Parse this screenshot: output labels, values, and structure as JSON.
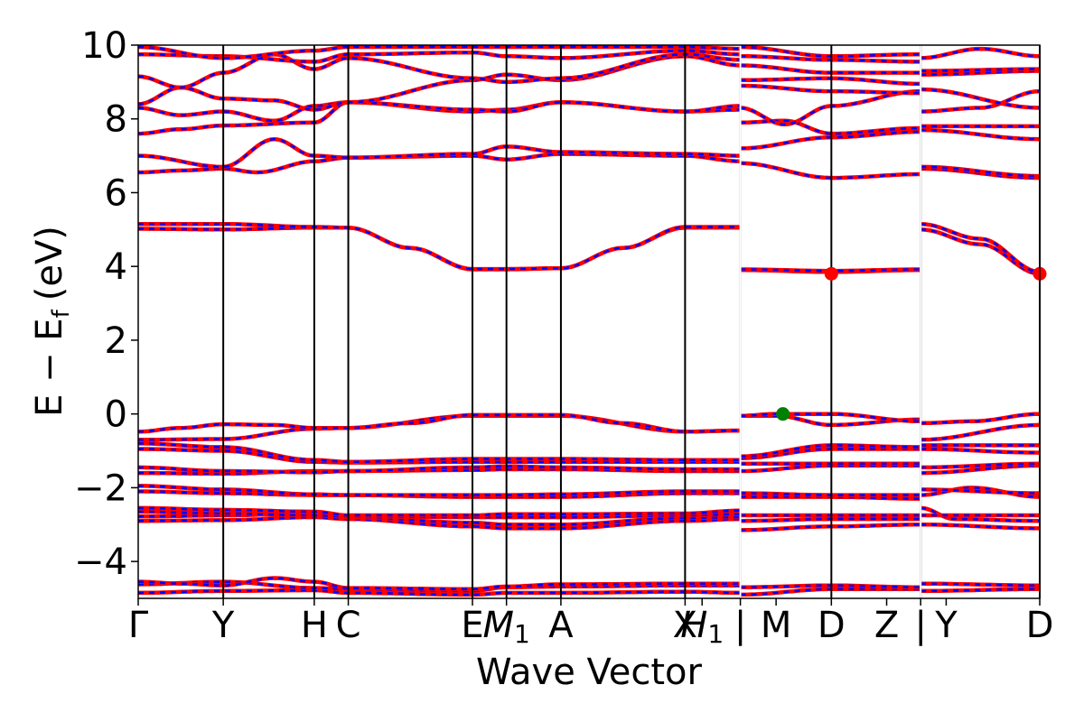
{
  "chart_data": {
    "type": "line",
    "title": "",
    "xlabel": "Wave Vector",
    "ylabel": "E − E_f (eV)",
    "ylabel_parts": {
      "main": "E − E",
      "sub": "f",
      "unit": "(eV)"
    },
    "ylim": [
      -5,
      10
    ],
    "yticks": [
      -4,
      -2,
      0,
      2,
      4,
      6,
      8,
      10
    ],
    "ytick_labels": [
      "−4",
      "−2",
      "0",
      "2",
      "4",
      "6",
      "8",
      "10"
    ],
    "x_range": [
      0,
      10.6
    ],
    "kpoint_ticks": [
      {
        "x": 0.0,
        "label": "Γ"
      },
      {
        "x": 1.0,
        "label": "Y"
      },
      {
        "x": 2.07,
        "label": "H"
      },
      {
        "x": 2.47,
        "label": "C"
      },
      {
        "x": 3.93,
        "label": "E"
      },
      {
        "x": 4.33,
        "label": "M",
        "sub": "1"
      },
      {
        "x": 4.97,
        "label": "A"
      },
      {
        "x": 6.43,
        "label": "X"
      },
      {
        "x": 6.63,
        "label": "H",
        "sub": "1"
      },
      {
        "x": 7.08,
        "label": "|"
      },
      {
        "x": 7.5,
        "label": "M"
      },
      {
        "x": 8.15,
        "label": "D"
      },
      {
        "x": 8.8,
        "label": "Z"
      },
      {
        "x": 9.2,
        "label": "|"
      },
      {
        "x": 9.5,
        "label": "Y"
      },
      {
        "x": 10.6,
        "label": "D"
      }
    ],
    "vlines": [
      1.0,
      2.07,
      2.47,
      3.93,
      4.33,
      4.97,
      6.43,
      7.08,
      8.15,
      9.2,
      10.6
    ],
    "segment_breaks": [
      7.08,
      9.2
    ],
    "series_colors": [
      "#ff0000",
      "#0000ff"
    ],
    "marker_colors": {
      "cbm": "#ff0000",
      "vbm": "#008000"
    },
    "bands_segment1": [
      {
        "x": [
          0,
          1.0,
          2.07,
          2.47,
          3.93,
          4.33,
          4.97,
          6.43,
          7.08
        ],
        "y": [
          -4.85,
          -4.8,
          -4.78,
          -4.85,
          -4.9,
          -4.85,
          -4.85,
          -4.82,
          -4.85
        ]
      },
      {
        "x": [
          0,
          1.0,
          2.07,
          2.47,
          3.93,
          4.33,
          4.97,
          6.43,
          7.08
        ],
        "y": [
          -4.62,
          -4.55,
          -4.72,
          -4.75,
          -4.8,
          -4.7,
          -4.68,
          -4.65,
          -4.65
        ]
      },
      {
        "x": [
          0,
          0.5,
          1.0,
          1.6,
          2.07,
          2.47,
          3.93,
          4.33,
          4.97,
          6.43,
          7.08
        ],
        "y": [
          -4.55,
          -4.6,
          -4.65,
          -4.45,
          -4.55,
          -4.72,
          -4.75,
          -4.68,
          -4.62,
          -4.6,
          -4.6
        ]
      },
      {
        "x": [
          0,
          1.0,
          2.07,
          2.47,
          3.93,
          4.33,
          4.97,
          6.43,
          7.08
        ],
        "y": [
          -2.9,
          -2.88,
          -2.8,
          -2.85,
          -3.05,
          -3.1,
          -3.1,
          -2.9,
          -2.85
        ]
      },
      {
        "x": [
          0,
          1.0,
          2.07,
          2.47,
          3.93,
          4.33,
          4.97,
          6.43,
          7.08
        ],
        "y": [
          -2.78,
          -2.75,
          -2.7,
          -2.8,
          -2.95,
          -3.0,
          -3.0,
          -2.82,
          -2.8
        ]
      },
      {
        "x": [
          0,
          1.0,
          2.07,
          2.47,
          3.93,
          4.33,
          4.97,
          6.43,
          7.08
        ],
        "y": [
          -2.65,
          -2.7,
          -2.75,
          -2.78,
          -2.8,
          -2.8,
          -2.8,
          -2.75,
          -2.72
        ]
      },
      {
        "x": [
          0,
          1.0,
          2.07,
          2.47,
          3.93,
          4.33,
          4.97,
          6.43,
          7.08
        ],
        "y": [
          -2.55,
          -2.6,
          -2.65,
          -2.75,
          -2.75,
          -2.72,
          -2.72,
          -2.7,
          -2.62
        ]
      },
      {
        "x": [
          0,
          1.0,
          2.07,
          2.47,
          3.93,
          4.33,
          4.97,
          6.43,
          7.08
        ],
        "y": [
          -2.1,
          -2.15,
          -2.2,
          -2.2,
          -2.25,
          -2.25,
          -2.25,
          -2.15,
          -2.15
        ]
      },
      {
        "x": [
          0,
          1.0,
          2.07,
          2.47,
          3.93,
          4.33,
          4.97,
          6.43,
          7.08
        ],
        "y": [
          -1.95,
          -2.05,
          -2.18,
          -2.2,
          -2.2,
          -2.2,
          -2.18,
          -2.1,
          -2.1
        ]
      },
      {
        "x": [
          0,
          1.0,
          2.07,
          2.47,
          3.93,
          4.33,
          4.97,
          6.43,
          7.08
        ],
        "y": [
          -1.6,
          -1.62,
          -1.55,
          -1.55,
          -1.52,
          -1.5,
          -1.5,
          -1.55,
          -1.55
        ]
      },
      {
        "x": [
          0,
          1.0,
          2.07,
          2.47,
          3.93,
          4.33,
          4.97,
          6.43,
          7.08
        ],
        "y": [
          -1.45,
          -1.55,
          -1.58,
          -1.55,
          -1.45,
          -1.42,
          -1.45,
          -1.5,
          -1.5
        ]
      },
      {
        "x": [
          0,
          1.0,
          2.07,
          2.47,
          3.93,
          4.33,
          4.97,
          6.43,
          7.08
        ],
        "y": [
          -0.95,
          -1.0,
          -1.3,
          -1.32,
          -1.3,
          -1.3,
          -1.3,
          -1.3,
          -1.3
        ]
      },
      {
        "x": [
          0,
          1.0,
          2.07,
          2.47,
          3.93,
          4.33,
          4.97,
          6.43,
          7.08
        ],
        "y": [
          -0.8,
          -0.9,
          -1.25,
          -1.3,
          -1.22,
          -1.22,
          -1.22,
          -1.25,
          -1.25
        ]
      },
      {
        "x": [
          0,
          1.0,
          2.07,
          2.47,
          3.93,
          4.33,
          4.97,
          6.43,
          7.08
        ],
        "y": [
          -0.7,
          -0.68,
          -0.4,
          -0.38,
          -0.05,
          -0.05,
          -0.05,
          -0.48,
          -0.45
        ]
      },
      {
        "x": [
          0,
          0.5,
          1.0,
          1.6,
          2.07,
          2.47,
          3.2,
          3.93,
          4.33,
          4.97,
          5.7,
          6.43,
          7.08
        ],
        "y": [
          -0.48,
          -0.38,
          -0.28,
          -0.3,
          -0.38,
          -0.38,
          -0.25,
          -0.03,
          -0.03,
          -0.03,
          -0.25,
          -0.48,
          -0.45
        ]
      },
      {
        "x": [
          0,
          1.0,
          2.07,
          2.47,
          3.2,
          3.93,
          4.33,
          4.97,
          5.7,
          6.43,
          7.08
        ],
        "y": [
          5.02,
          5.0,
          5.05,
          5.05,
          4.5,
          3.92,
          3.92,
          3.95,
          4.5,
          5.05,
          5.05
        ]
      },
      {
        "x": [
          0,
          1.0,
          2.07,
          2.47,
          3.2,
          3.93,
          4.33,
          4.97,
          5.7,
          6.43,
          7.08
        ],
        "y": [
          5.15,
          5.15,
          5.07,
          5.05,
          4.5,
          3.93,
          3.93,
          3.95,
          4.5,
          5.07,
          5.07
        ]
      },
      {
        "x": [
          0,
          0.5,
          1.0,
          1.4,
          2.07,
          2.47,
          3.93,
          4.33,
          4.97,
          6.43,
          7.08
        ],
        "y": [
          6.55,
          6.6,
          6.65,
          6.55,
          6.85,
          6.95,
          7.0,
          6.9,
          7.05,
          7.0,
          6.85
        ]
      },
      {
        "x": [
          0,
          1.0,
          1.6,
          2.07,
          2.47,
          3.93,
          4.33,
          4.97,
          6.43,
          7.08
        ],
        "y": [
          7.0,
          6.7,
          7.45,
          7.0,
          6.95,
          7.05,
          7.25,
          7.1,
          7.05,
          7.0
        ]
      },
      {
        "x": [
          0,
          0.5,
          1.0,
          2.07,
          2.47,
          3.93,
          4.33,
          4.97,
          6.43,
          7.08
        ],
        "y": [
          7.6,
          7.72,
          7.82,
          7.9,
          8.45,
          8.2,
          8.25,
          8.45,
          8.2,
          8.25
        ]
      },
      {
        "x": [
          0,
          0.5,
          1.0,
          1.6,
          2.07,
          2.47,
          3.93,
          4.33,
          4.97,
          6.43,
          7.08
        ],
        "y": [
          8.3,
          8.1,
          8.2,
          7.95,
          8.35,
          8.45,
          8.25,
          8.2,
          8.45,
          8.2,
          8.35
        ]
      },
      {
        "x": [
          0,
          0.5,
          1.0,
          1.6,
          2.07,
          2.47,
          3.93,
          4.33,
          4.97,
          6.43,
          7.08
        ],
        "y": [
          8.4,
          8.85,
          8.55,
          8.5,
          8.25,
          8.45,
          9.05,
          9.2,
          9.05,
          9.7,
          9.45
        ]
      },
      {
        "x": [
          0,
          0.5,
          1.0,
          1.6,
          2.07,
          2.47,
          3.93,
          4.33,
          4.97,
          6.43,
          7.08
        ],
        "y": [
          9.15,
          8.85,
          9.25,
          9.75,
          9.35,
          9.65,
          9.1,
          9.0,
          9.1,
          9.75,
          9.6
        ]
      },
      {
        "x": [
          0,
          1.0,
          2.07,
          2.47,
          3.93,
          4.33,
          4.97,
          6.43,
          7.08
        ],
        "y": [
          9.75,
          9.7,
          9.55,
          9.75,
          9.8,
          9.7,
          9.65,
          9.85,
          9.75
        ]
      },
      {
        "x": [
          0,
          1.0,
          2.07,
          2.47,
          3.93,
          4.33,
          4.97,
          6.43,
          7.08
        ],
        "y": [
          9.95,
          9.65,
          9.85,
          9.95,
          9.95,
          9.95,
          9.95,
          9.95,
          9.9
        ]
      }
    ],
    "bands_segment2": [
      {
        "x": [
          7.08,
          8.15,
          9.2
        ],
        "y": [
          -4.9,
          -4.75,
          -4.75
        ]
      },
      {
        "x": [
          7.08,
          8.15,
          9.2
        ],
        "y": [
          -4.7,
          -4.65,
          -4.7
        ]
      },
      {
        "x": [
          7.08,
          8.15,
          9.2
        ],
        "y": [
          -3.15,
          -3.05,
          -3.0
        ]
      },
      {
        "x": [
          7.08,
          8.15,
          9.2
        ],
        "y": [
          -2.9,
          -2.85,
          -2.85
        ]
      },
      {
        "x": [
          7.08,
          8.15,
          9.2
        ],
        "y": [
          -2.75,
          -2.75,
          -2.75
        ]
      },
      {
        "x": [
          7.08,
          8.15,
          9.2
        ],
        "y": [
          -2.25,
          -2.25,
          -2.3
        ]
      },
      {
        "x": [
          7.08,
          8.15,
          9.2
        ],
        "y": [
          -2.15,
          -2.2,
          -2.2
        ]
      },
      {
        "x": [
          7.08,
          8.15,
          9.2
        ],
        "y": [
          -1.55,
          -1.4,
          -1.4
        ]
      },
      {
        "x": [
          7.08,
          8.15,
          9.2
        ],
        "y": [
          -1.35,
          -1.35,
          -1.35
        ]
      },
      {
        "x": [
          7.08,
          8.15,
          9.2
        ],
        "y": [
          -1.2,
          -0.95,
          -0.95
        ]
      },
      {
        "x": [
          7.08,
          8.15,
          9.2
        ],
        "y": [
          -1.15,
          -0.85,
          -0.9
        ]
      },
      {
        "x": [
          7.08,
          7.5,
          8.15,
          9.2
        ],
        "y": [
          -0.05,
          -0.05,
          -0.3,
          -0.15
        ]
      },
      {
        "x": [
          7.08,
          7.5,
          8.15,
          9.2
        ],
        "y": [
          -0.05,
          0.0,
          0.0,
          -0.2
        ]
      },
      {
        "x": [
          7.08,
          8.15,
          9.2
        ],
        "y": [
          3.9,
          3.85,
          3.9
        ]
      },
      {
        "x": [
          7.08,
          8.15,
          9.2
        ],
        "y": [
          3.92,
          3.88,
          3.92
        ]
      },
      {
        "x": [
          7.08,
          8.15,
          9.2
        ],
        "y": [
          6.8,
          6.4,
          6.5
        ]
      },
      {
        "x": [
          7.08,
          8.15,
          9.2
        ],
        "y": [
          7.2,
          7.5,
          7.65
        ]
      },
      {
        "x": [
          7.08,
          7.6,
          8.15,
          9.2
        ],
        "y": [
          7.9,
          7.95,
          7.6,
          7.75
        ]
      },
      {
        "x": [
          7.08,
          7.6,
          8.15,
          9.2
        ],
        "y": [
          8.3,
          7.85,
          8.35,
          8.75
        ]
      },
      {
        "x": [
          7.08,
          8.15,
          9.2
        ],
        "y": [
          8.9,
          8.75,
          8.7
        ]
      },
      {
        "x": [
          7.08,
          8.15,
          9.2
        ],
        "y": [
          9.05,
          9.1,
          8.95
        ]
      },
      {
        "x": [
          7.08,
          8.15,
          9.2
        ],
        "y": [
          9.45,
          9.25,
          9.25
        ]
      },
      {
        "x": [
          7.08,
          8.15,
          9.2
        ],
        "y": [
          9.7,
          9.6,
          9.55
        ]
      },
      {
        "x": [
          7.08,
          8.15,
          9.2
        ],
        "y": [
          9.95,
          9.7,
          9.75
        ]
      }
    ],
    "bands_segment3": [
      {
        "x": [
          9.2,
          10.6
        ],
        "y": [
          -4.8,
          -4.75
        ]
      },
      {
        "x": [
          9.2,
          10.6
        ],
        "y": [
          -4.6,
          -4.65
        ]
      },
      {
        "x": [
          9.2,
          10.6
        ],
        "y": [
          -3.0,
          -3.1
        ]
      },
      {
        "x": [
          9.2,
          9.6,
          10.6
        ],
        "y": [
          -2.55,
          -2.85,
          -2.9
        ]
      },
      {
        "x": [
          9.2,
          10.6
        ],
        "y": [
          -2.75,
          -2.75
        ]
      },
      {
        "x": [
          9.2,
          9.8,
          10.6
        ],
        "y": [
          -2.2,
          -2.0,
          -2.25
        ]
      },
      {
        "x": [
          9.2,
          10.6
        ],
        "y": [
          -2.05,
          -2.15
        ]
      },
      {
        "x": [
          9.2,
          10.6
        ],
        "y": [
          -1.6,
          -1.4
        ]
      },
      {
        "x": [
          9.2,
          10.6
        ],
        "y": [
          -1.45,
          -1.35
        ]
      },
      {
        "x": [
          9.2,
          10.6
        ],
        "y": [
          -0.95,
          -1.05
        ]
      },
      {
        "x": [
          9.2,
          10.6
        ],
        "y": [
          -0.85,
          -0.85
        ]
      },
      {
        "x": [
          9.2,
          10.6
        ],
        "y": [
          -0.7,
          -0.3
        ]
      },
      {
        "x": [
          9.2,
          9.8,
          10.6
        ],
        "y": [
          -0.25,
          -0.2,
          0.0
        ]
      },
      {
        "x": [
          9.2,
          9.9,
          10.6
        ],
        "y": [
          5.0,
          4.6,
          3.8
        ]
      },
      {
        "x": [
          9.2,
          9.9,
          10.6
        ],
        "y": [
          5.15,
          4.75,
          3.85
        ]
      },
      {
        "x": [
          9.2,
          10.6
        ],
        "y": [
          6.65,
          6.4
        ]
      },
      {
        "x": [
          9.2,
          10.6
        ],
        "y": [
          6.7,
          6.45
        ]
      },
      {
        "x": [
          9.2,
          10.6
        ],
        "y": [
          7.7,
          7.45
        ]
      },
      {
        "x": [
          9.2,
          10.6
        ],
        "y": [
          7.8,
          7.8
        ]
      },
      {
        "x": [
          9.2,
          9.9,
          10.6
        ],
        "y": [
          8.2,
          8.3,
          8.75
        ]
      },
      {
        "x": [
          9.2,
          10.6
        ],
        "y": [
          8.8,
          8.3
        ]
      },
      {
        "x": [
          9.2,
          10.6
        ],
        "y": [
          9.2,
          9.3
        ]
      },
      {
        "x": [
          9.2,
          10.6
        ],
        "y": [
          9.3,
          9.35
        ]
      },
      {
        "x": [
          9.2,
          9.9,
          10.6
        ],
        "y": [
          9.65,
          9.9,
          9.7
        ]
      }
    ],
    "markers": [
      {
        "x": 8.15,
        "y": 3.8,
        "kind": "cbm"
      },
      {
        "x": 10.6,
        "y": 3.8,
        "kind": "cbm"
      },
      {
        "x": 7.58,
        "y": 0.0,
        "kind": "vbm"
      }
    ]
  }
}
